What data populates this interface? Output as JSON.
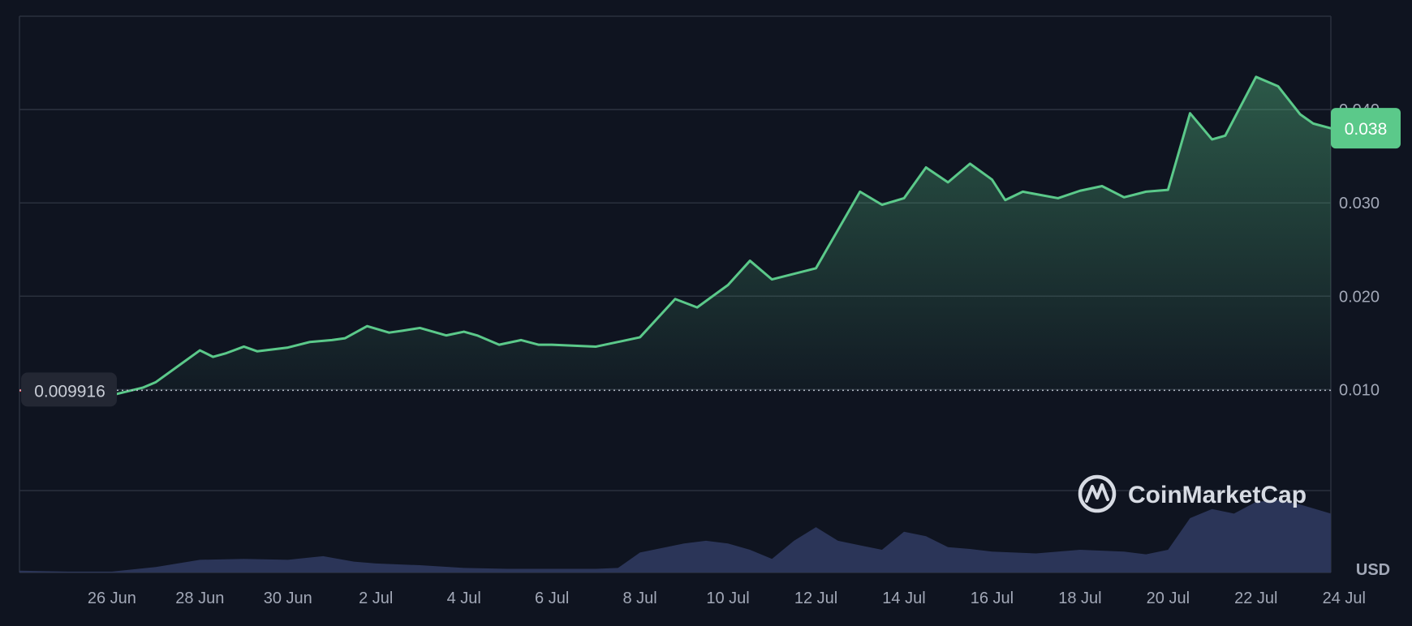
{
  "chart_data": {
    "type": "area",
    "currency": "USD",
    "x_tick_labels": [
      "26 Jun",
      "28 Jun",
      "30 Jun",
      "2 Jul",
      "4 Jul",
      "6 Jul",
      "8 Jul",
      "10 Jul",
      "12 Jul",
      "14 Jul",
      "16 Jul",
      "18 Jul",
      "20 Jul",
      "22 Jul",
      "24 Jul"
    ],
    "y_tick_labels": [
      "0.010",
      "0.020",
      "0.030",
      "0.040"
    ],
    "ylim": [
      -0.0096,
      0.05
    ],
    "xlim": [
      -2.1,
      27.7
    ],
    "baseline": {
      "value": 0.009916,
      "label": "0.009916"
    },
    "current_price": {
      "value": 0.038,
      "label": "0.038"
    },
    "price_series": {
      "x": [
        -2.1,
        -1,
        0,
        0.7,
        1,
        1.5,
        2,
        2.3,
        2.6,
        3,
        3.3,
        4,
        4.5,
        5,
        5.3,
        5.8,
        6.3,
        6.6,
        7,
        7.6,
        8,
        8.3,
        8.8,
        9.3,
        9.7,
        10,
        11,
        12,
        12.8,
        13.3,
        14,
        14.5,
        15,
        16,
        17,
        17.5,
        18,
        18.5,
        19,
        19.5,
        20,
        20.3,
        20.7,
        21.5,
        22,
        22.5,
        23,
        23.5,
        24,
        24.5,
        25,
        25.3,
        25.7,
        26,
        26.5,
        27,
        27.3,
        27.7
      ],
      "y": [
        0.0099,
        0.0096,
        0.0094,
        0.0102,
        0.0108,
        0.0125,
        0.0142,
        0.0135,
        0.0139,
        0.0146,
        0.0141,
        0.0145,
        0.0151,
        0.0153,
        0.0155,
        0.0168,
        0.0161,
        0.0163,
        0.0166,
        0.0158,
        0.0162,
        0.0158,
        0.0148,
        0.0153,
        0.0148,
        0.0148,
        0.0146,
        0.0156,
        0.0197,
        0.0188,
        0.0212,
        0.0238,
        0.0218,
        0.023,
        0.0312,
        0.0298,
        0.0305,
        0.0338,
        0.0322,
        0.0342,
        0.0325,
        0.0303,
        0.0312,
        0.0305,
        0.0313,
        0.0318,
        0.0306,
        0.0312,
        0.0314,
        0.0396,
        0.0368,
        0.0372,
        0.0408,
        0.0435,
        0.0425,
        0.0395,
        0.0385,
        0.038
      ]
    },
    "volume_series": {
      "x": [
        -2.1,
        -1,
        0,
        1,
        2,
        3,
        4,
        4.8,
        5.5,
        6,
        7,
        8,
        9,
        10,
        10.5,
        11,
        11.5,
        12,
        13,
        13.5,
        14,
        14.5,
        15,
        15.5,
        16,
        16.5,
        17,
        17.5,
        18,
        18.5,
        19,
        19.5,
        20,
        20.5,
        21,
        21.5,
        22,
        22.5,
        23,
        23.5,
        24,
        24.5,
        25,
        25.5,
        26,
        26.5,
        27,
        27.7
      ],
      "y": [
        0.2,
        0.1,
        0.1,
        0.6,
        1.4,
        1.5,
        1.4,
        1.8,
        1.2,
        1,
        0.8,
        0.5,
        0.4,
        0.4,
        0.4,
        0.4,
        0.5,
        2.2,
        3.2,
        3.5,
        3.2,
        2.5,
        1.5,
        3.5,
        5,
        3.5,
        3,
        2.5,
        4.5,
        4,
        2.8,
        2.6,
        2.3,
        2.2,
        2.1,
        2.3,
        2.5,
        2.4,
        2.3,
        2,
        2.5,
        6,
        7,
        6.5,
        7.8,
        8,
        7.5,
        6.5
      ]
    }
  },
  "brand": {
    "name": "CoinMarketCap"
  },
  "colors": {
    "background": "#0f1420",
    "up": "#5bc98a",
    "down": "#ea3943",
    "volume": "#2b3558",
    "badge": "#5bc98a"
  }
}
